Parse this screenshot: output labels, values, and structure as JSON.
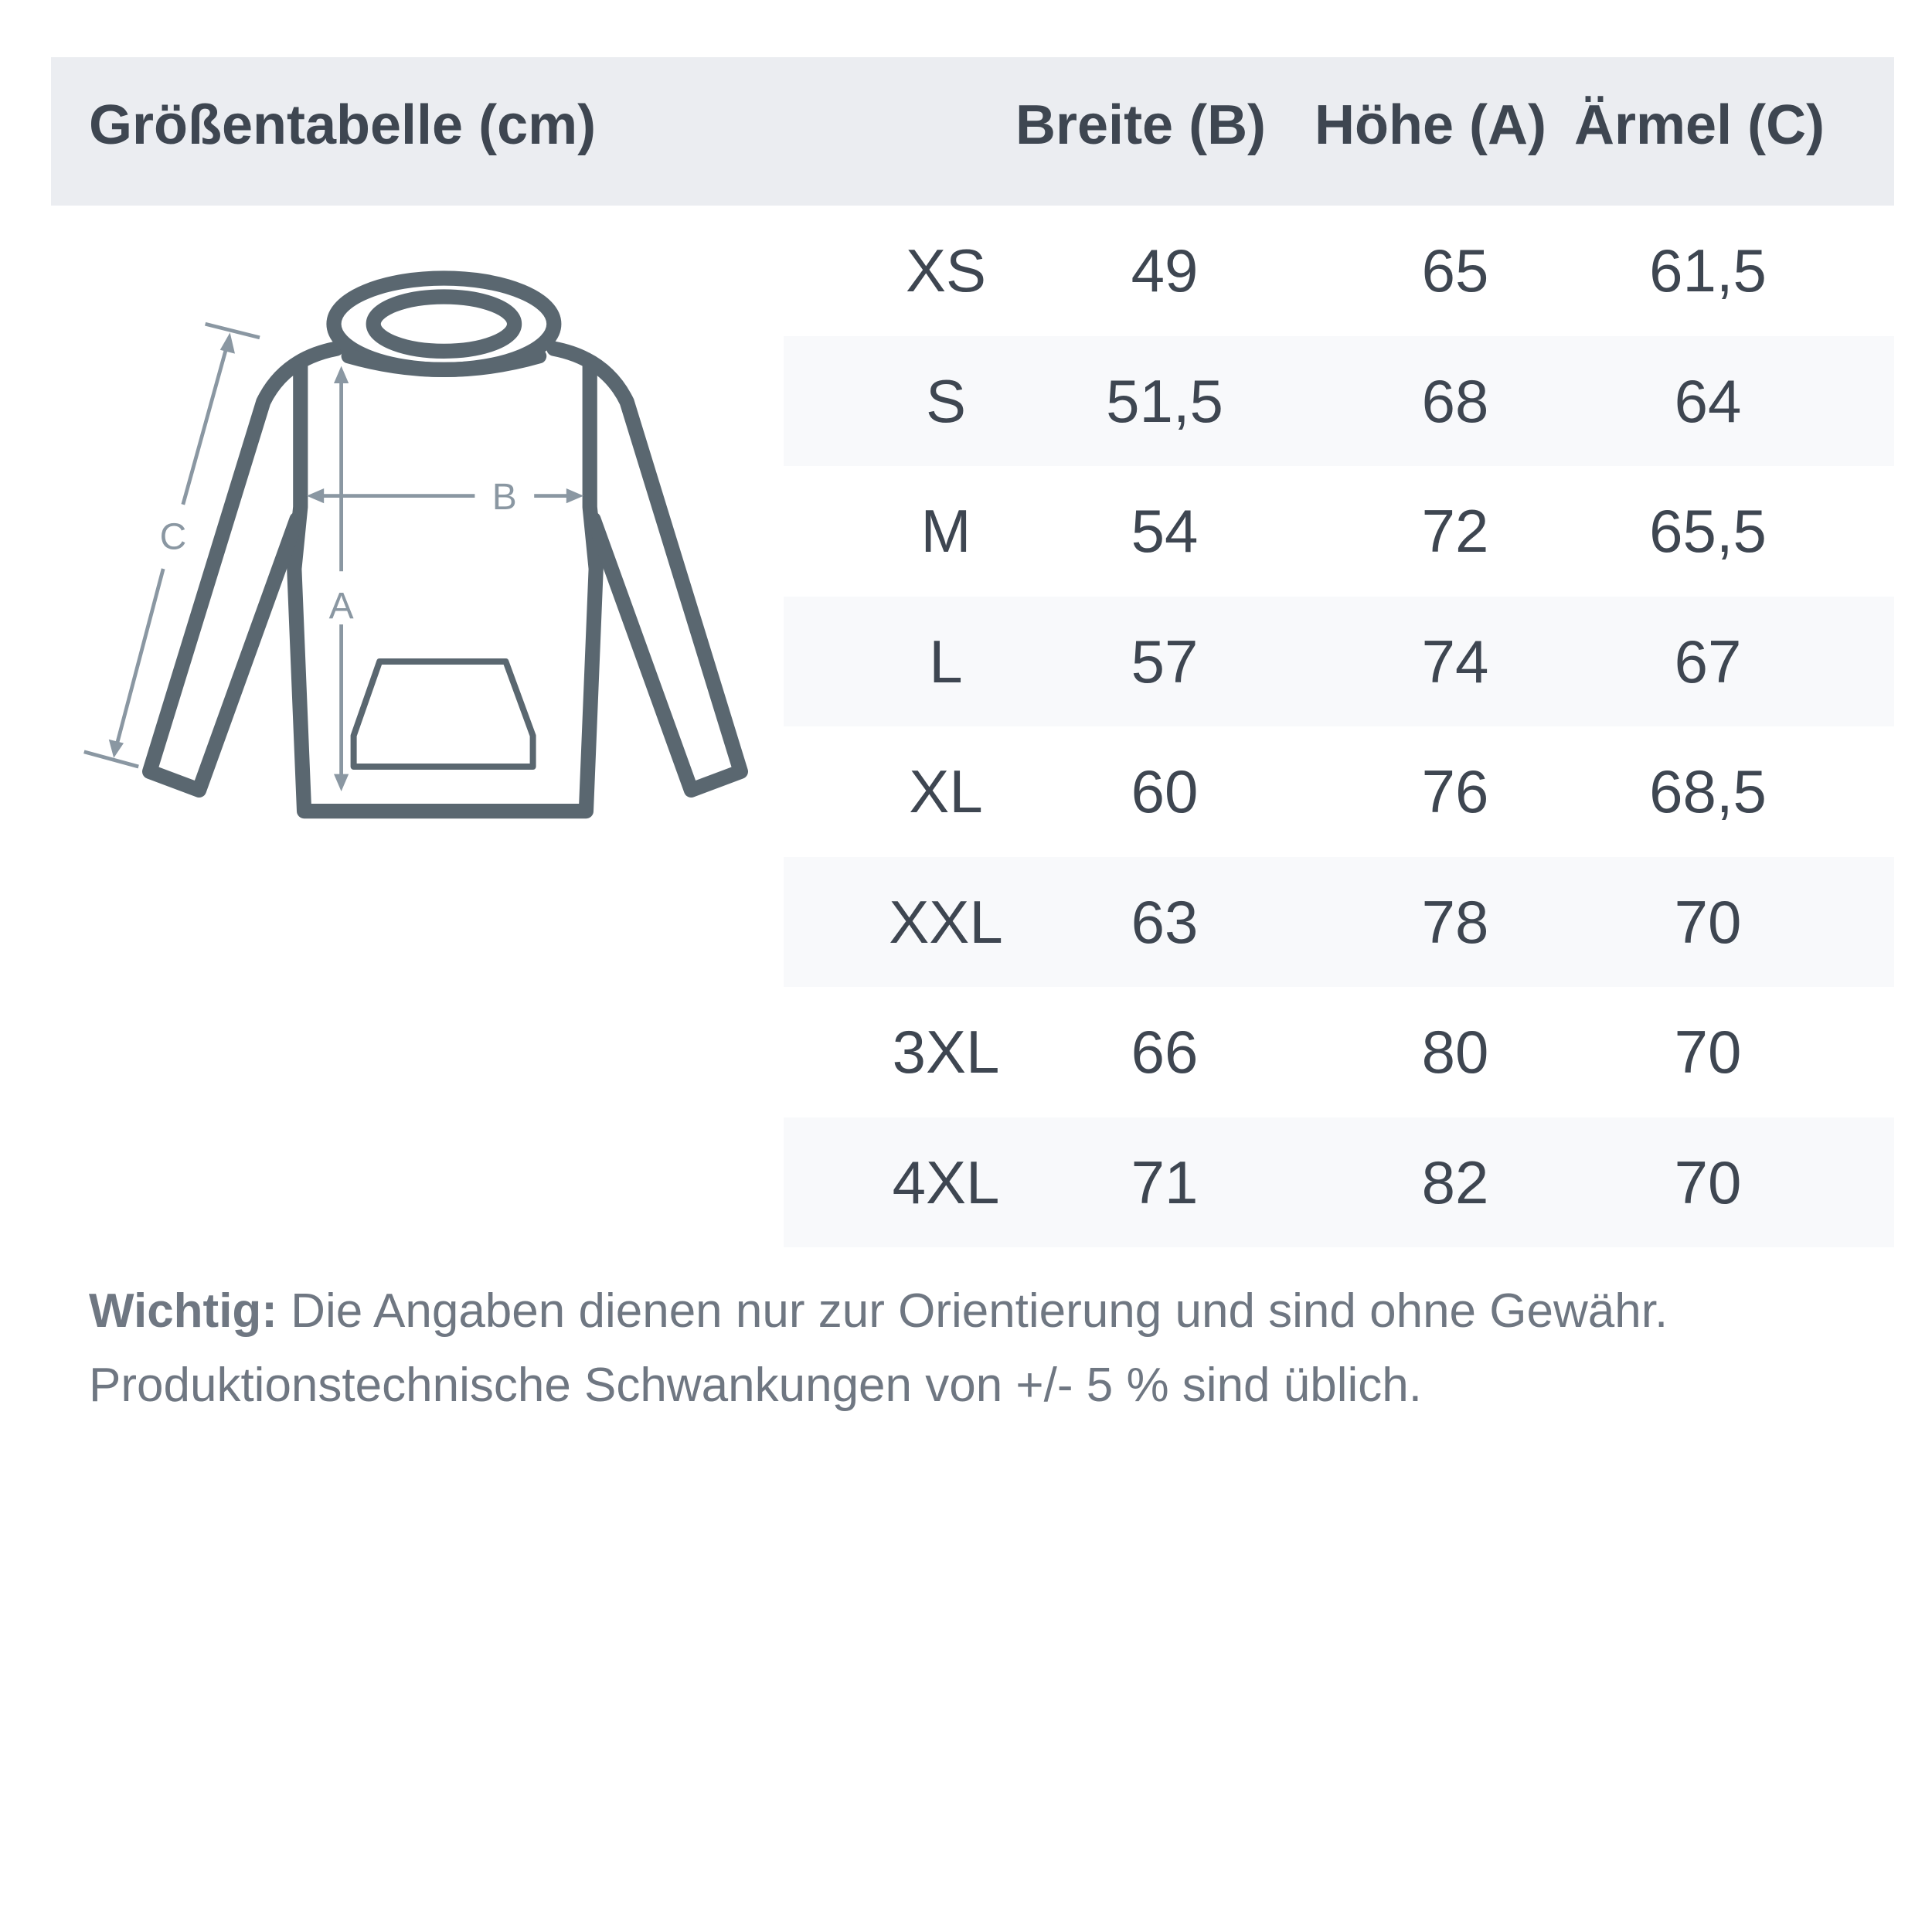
{
  "header": {
    "title": "Größentabelle (cm)",
    "columns": [
      "Breite (B)",
      "Höhe (A)",
      "Ärmel (C)"
    ]
  },
  "diagram": {
    "labels": {
      "a": "A",
      "b": "B",
      "c": "C"
    },
    "colors": {
      "outline": "#5a6770",
      "arrows": "#8a97a2"
    }
  },
  "rows": [
    {
      "size": "XS",
      "b": "49",
      "a": "65",
      "c": "61,5"
    },
    {
      "size": "S",
      "b": "51,5",
      "a": "68",
      "c": "64"
    },
    {
      "size": "M",
      "b": "54",
      "a": "72",
      "c": "65,5"
    },
    {
      "size": "L",
      "b": "57",
      "a": "74",
      "c": "67"
    },
    {
      "size": "XL",
      "b": "60",
      "a": "76",
      "c": "68,5"
    },
    {
      "size": "XXL",
      "b": "63",
      "a": "78",
      "c": "70"
    },
    {
      "size": "3XL",
      "b": "66",
      "a": "80",
      "c": "70"
    },
    {
      "size": "4XL",
      "b": "71",
      "a": "82",
      "c": "70"
    }
  ],
  "note": {
    "bold": "Wichtig:",
    "line1": " Die Angaben dienen nur zur Orientierung und sind ohne Gewähr.",
    "line2": "Produktionstechnische Schwankungen von +/- 5 % sind üblich."
  }
}
